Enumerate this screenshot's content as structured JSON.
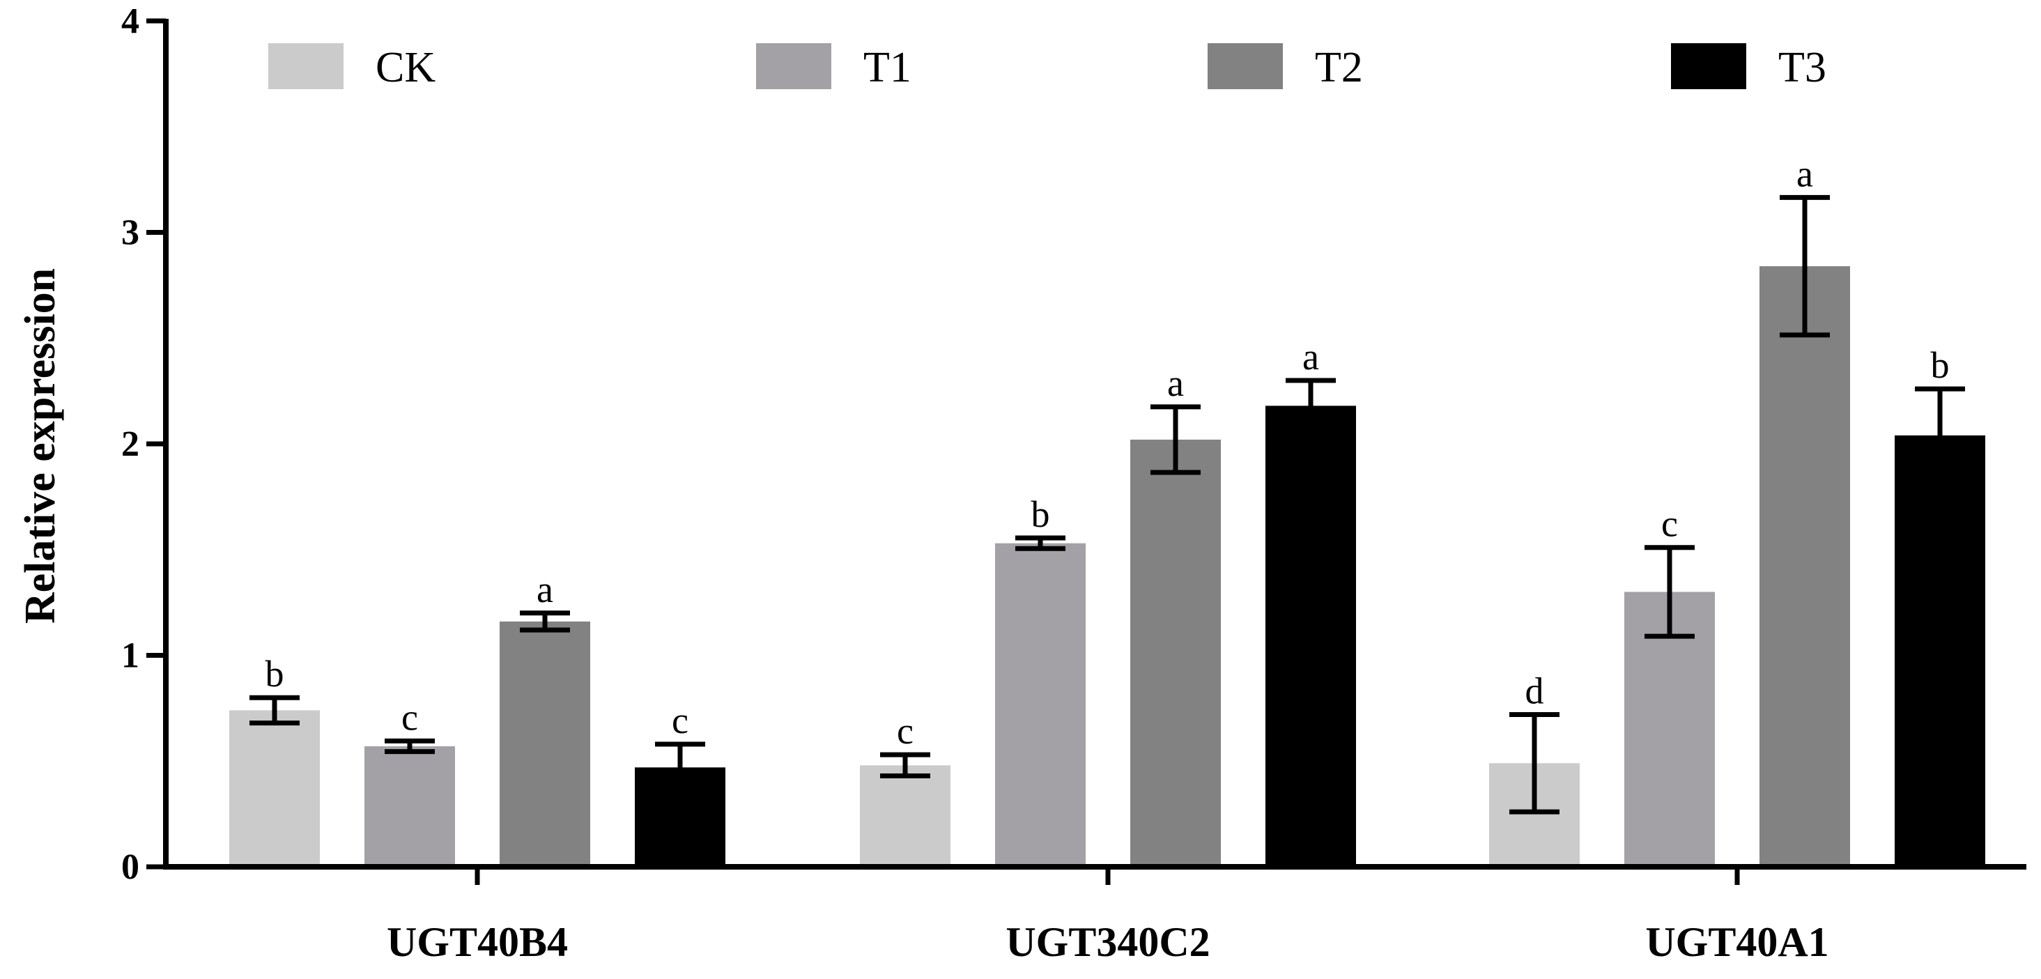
{
  "chart_data": {
    "type": "bar",
    "title": "",
    "xlabel": "",
    "ylabel": "Relative expression",
    "ylim": [
      0,
      4
    ],
    "yticks": [
      0,
      1,
      2,
      3,
      4
    ],
    "grid": false,
    "legend_position": "top",
    "categories": [
      "UGT40B4",
      "UGT340C2",
      "UGT40A1"
    ],
    "series": [
      {
        "name": "CK",
        "color": "#cbcbcb",
        "values": [
          0.74,
          0.48,
          0.49
        ],
        "errors": [
          0.06,
          0.05,
          0.23
        ],
        "labels": [
          "b",
          "c",
          "d"
        ]
      },
      {
        "name": "T1",
        "color": "#a3a1a6",
        "values": [
          0.57,
          1.53,
          1.3
        ],
        "errors": [
          0.025,
          0.025,
          0.21
        ],
        "labels": [
          "c",
          "b",
          "c"
        ]
      },
      {
        "name": "T2",
        "color": "#828282",
        "values": [
          1.16,
          2.02,
          2.84
        ],
        "errors": [
          0.04,
          0.155,
          0.325
        ],
        "labels": [
          "a",
          "a",
          "a"
        ]
      },
      {
        "name": "T3",
        "color": "#000000",
        "values": [
          0.47,
          2.18,
          2.04
        ],
        "errors": [
          0.11,
          0.12,
          0.22
        ],
        "labels": [
          "c",
          "a",
          "b"
        ]
      }
    ]
  }
}
